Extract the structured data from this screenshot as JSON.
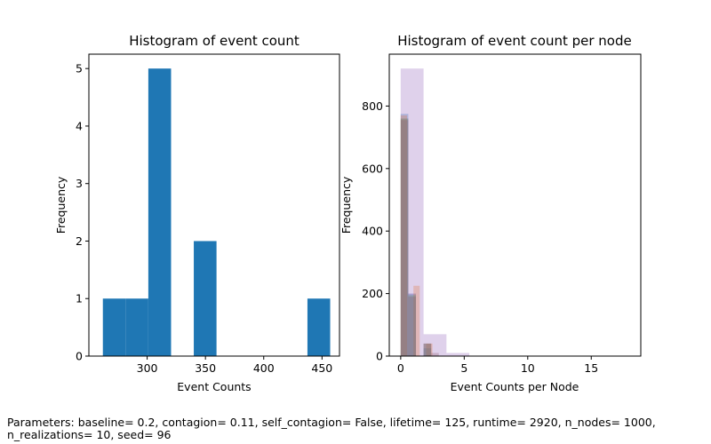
{
  "chart_data": [
    {
      "type": "bar",
      "title": "Histogram of event count",
      "xlabel": "Event Counts",
      "ylabel": "Frequency",
      "xlim": [
        250,
        465
      ],
      "ylim": [
        0,
        5.25
      ],
      "xticks": [
        "300",
        "350",
        "400",
        "450"
      ],
      "yticks": [
        "0",
        "1",
        "2",
        "3",
        "4",
        "5"
      ],
      "grid": false,
      "color": "#1f77b4",
      "bins": [
        {
          "x0": 262,
          "x1": 281.5,
          "value": 1
        },
        {
          "x0": 281.5,
          "x1": 301,
          "value": 1
        },
        {
          "x0": 301,
          "x1": 320.5,
          "value": 5
        },
        {
          "x0": 320.5,
          "x1": 340,
          "value": 0
        },
        {
          "x0": 340,
          "x1": 359.5,
          "value": 2
        },
        {
          "x0": 359.5,
          "x1": 379,
          "value": 0
        },
        {
          "x0": 379,
          "x1": 398.5,
          "value": 0
        },
        {
          "x0": 398.5,
          "x1": 418,
          "value": 0
        },
        {
          "x0": 418,
          "x1": 437.5,
          "value": 0
        },
        {
          "x0": 437.5,
          "x1": 457,
          "value": 1
        }
      ]
    },
    {
      "type": "bar",
      "title": "Histogram of event count per node",
      "xlabel": "Event Counts per Node",
      "ylabel": "Frequency",
      "xlim": [
        -0.9,
        18.9
      ],
      "ylim": [
        0,
        966
      ],
      "xticks": [
        "0",
        "5",
        "10",
        "15"
      ],
      "yticks": [
        "0",
        "200",
        "400",
        "600",
        "800"
      ],
      "grid": false,
      "overlay_alpha": 0.3,
      "series": [
        {
          "color": "#e377c2",
          "bins": [
            {
              "x0": 0,
              "x1": 0.6,
              "value": 760
            },
            {
              "x0": 0.6,
              "x1": 1.2,
              "value": 200
            },
            {
              "x0": 1.2,
              "x1": 1.8,
              "value": 0
            },
            {
              "x0": 1.8,
              "x1": 2.4,
              "value": 40
            },
            {
              "x0": 2.4,
              "x1": 3.0,
              "value": 0
            }
          ]
        },
        {
          "color": "#1f77b4",
          "bins": [
            {
              "x0": 0,
              "x1": 0.6,
              "value": 775
            },
            {
              "x0": 0.6,
              "x1": 1.2,
              "value": 200
            },
            {
              "x0": 1.2,
              "x1": 1.8,
              "value": 0
            },
            {
              "x0": 1.8,
              "x1": 2.4,
              "value": 25
            },
            {
              "x0": 2.4,
              "x1": 3.0,
              "value": 0
            }
          ]
        },
        {
          "color": "#ff7f0e",
          "bins": [
            {
              "x0": 0,
              "x1": 0.5,
              "value": 770
            },
            {
              "x0": 0.5,
              "x1": 1.0,
              "value": 0
            },
            {
              "x0": 1.0,
              "x1": 1.5,
              "value": 225
            },
            {
              "x0": 1.5,
              "x1": 2.0,
              "value": 0
            },
            {
              "x0": 2.0,
              "x1": 2.5,
              "value": 40
            }
          ]
        },
        {
          "color": "#2ca02c",
          "bins": [
            {
              "x0": 0,
              "x1": 0.6,
              "value": 760
            },
            {
              "x0": 0.6,
              "x1": 1.2,
              "value": 195
            },
            {
              "x0": 1.2,
              "x1": 1.8,
              "value": 0
            },
            {
              "x0": 1.8,
              "x1": 2.4,
              "value": 40
            },
            {
              "x0": 2.4,
              "x1": 3.0,
              "value": 0
            }
          ]
        },
        {
          "color": "#8c564b",
          "bins": [
            {
              "x0": 0,
              "x1": 0.6,
              "value": 755
            },
            {
              "x0": 0.6,
              "x1": 1.2,
              "value": 190
            },
            {
              "x0": 1.2,
              "x1": 1.8,
              "value": 0
            },
            {
              "x0": 1.8,
              "x1": 2.4,
              "value": 40
            },
            {
              "x0": 2.4,
              "x1": 3.0,
              "value": 10
            }
          ]
        },
        {
          "color": "#9467bd",
          "bins": [
            {
              "x0": 0,
              "x1": 1.8,
              "value": 920
            },
            {
              "x0": 1.8,
              "x1": 3.6,
              "value": 70
            },
            {
              "x0": 3.6,
              "x1": 5.4,
              "value": 10
            },
            {
              "x0": 5.4,
              "x1": 7.2,
              "value": 0
            },
            {
              "x0": 7.2,
              "x1": 9.0,
              "value": 0
            },
            {
              "x0": 9.0,
              "x1": 10.8,
              "value": 0
            },
            {
              "x0": 10.8,
              "x1": 12.6,
              "value": 0
            },
            {
              "x0": 12.6,
              "x1": 14.4,
              "value": 0
            },
            {
              "x0": 14.4,
              "x1": 16.2,
              "value": 0
            },
            {
              "x0": 16.2,
              "x1": 18.0,
              "value": 1
            }
          ]
        }
      ]
    }
  ],
  "caption": "Parameters: baseline= 0.2, contagion= 0.11, self_contagion= False, lifetime= 125, runtime= 2920, n_nodes= 1000, n_realizations= 10, seed= 96"
}
